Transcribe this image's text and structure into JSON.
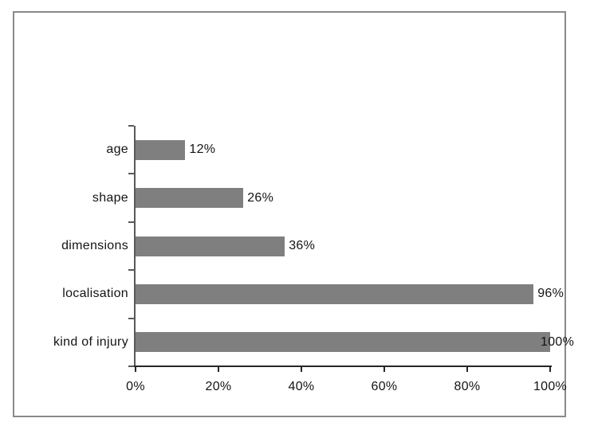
{
  "chart_data": {
    "type": "bar",
    "orientation": "horizontal",
    "categories": [
      "age",
      "shape",
      "dimensions",
      "localisation",
      "kind of injury"
    ],
    "values": [
      12,
      26,
      36,
      96,
      100
    ],
    "value_labels": [
      "12%",
      "26%",
      "36%",
      "96%",
      "100%"
    ],
    "x_tick_labels": [
      "0%",
      "20%",
      "40%",
      "60%",
      "80%",
      "100%"
    ],
    "x_tick_values": [
      0,
      20,
      40,
      60,
      80,
      100
    ],
    "xlim": [
      0,
      100
    ],
    "grid": false,
    "legend": false,
    "colors": {
      "bar": "#7f7f7f",
      "frame_border": "#8a8a8a",
      "y_axis": "#595959",
      "x_axis": "#262626",
      "text": "#141414",
      "background": "#ffffff"
    }
  }
}
